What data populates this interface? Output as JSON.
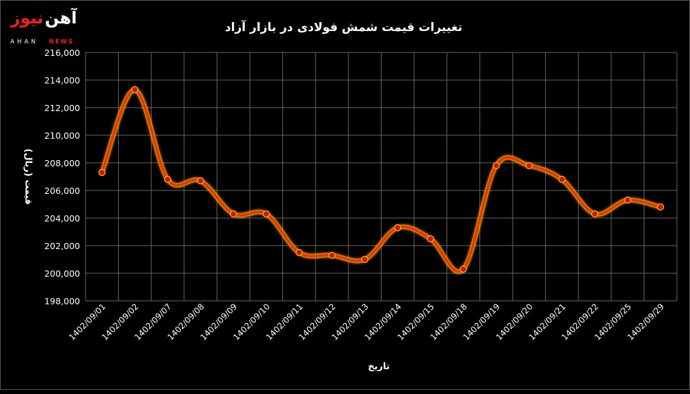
{
  "logo": {
    "fa_part1": "آهن",
    "fa_part2": "نیوز",
    "en_part1": "AHAN",
    "en_part2": "NEWS"
  },
  "colors": {
    "background": "#000000",
    "grid": "#666666",
    "line": "#ff2a00",
    "glow": "#ffbb00",
    "marker": "#d41212",
    "text": "#ffffff",
    "accent": "#e8231a"
  },
  "chart_data": {
    "type": "line",
    "title": "تغییرات قیمت شمش فولادی در بازار آزاد",
    "xlabel": "تاریخ",
    "ylabel": "قیمت (ریال)",
    "ylim": [
      198000,
      216000
    ],
    "grid": true,
    "categories": [
      "1402/09/01",
      "1402/09/02",
      "1402/09/07",
      "1402/09/08",
      "1402/09/09",
      "1402/09/10",
      "1402/09/11",
      "1402/09/12",
      "1402/09/13",
      "1402/09/14",
      "1402/09/15",
      "1402/09/18",
      "1402/09/19",
      "1402/09/20",
      "1402/09/21",
      "1402/09/22",
      "1402/09/25",
      "1402/09/29"
    ],
    "values": [
      207300,
      213300,
      206800,
      206700,
      204300,
      204300,
      201500,
      201300,
      201000,
      203300,
      202500,
      200300,
      207800,
      207800,
      206800,
      204300,
      205300,
      204800
    ],
    "y_ticks": [
      "198,000",
      "200,000",
      "202,000",
      "204,000",
      "206,000",
      "208,000",
      "210,000",
      "212,000",
      "214,000",
      "216,000"
    ]
  }
}
